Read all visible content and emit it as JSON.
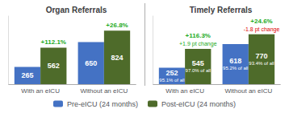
{
  "chart_data": [
    {
      "type": "bar",
      "title": "Organ Referrals",
      "categories": [
        "With an eICU",
        "Without an eICU"
      ],
      "series": [
        {
          "name": "Pre-eICU (24 months)",
          "color": "#4472C4",
          "values": [
            265,
            650
          ]
        },
        {
          "name": "Post-eICU (24 months)",
          "color": "#4E6B2A",
          "values": [
            562,
            824
          ]
        }
      ],
      "annotations": [
        {
          "category": "With an eICU",
          "text": "+112.1%",
          "color": "#22aa22"
        },
        {
          "category": "Without an eICU",
          "text": "+26.8%",
          "color": "#22aa22"
        }
      ],
      "ylim": [
        0,
        1050
      ],
      "grid": false,
      "tick_labels": "x",
      "data_labels": true,
      "legend": "bottom"
    },
    {
      "type": "bar",
      "title": "Timely Referrals",
      "categories": [
        "With an eICU",
        "Without an eICU"
      ],
      "series": [
        {
          "name": "Pre-eICU (24 months)",
          "color": "#4472C4",
          "values": [
            252,
            618
          ],
          "annotations": [
            "95.1% of all",
            "95.2% of all"
          ]
        },
        {
          "name": "Post-eICU (24 months)",
          "color": "#4E6B2A",
          "values": [
            545,
            770
          ],
          "annotations": [
            "97.0% of all",
            "93.4% of all"
          ]
        }
      ],
      "annotations": [
        {
          "category": "With an eICU",
          "text": "+116.3%",
          "color": "#22aa22"
        },
        {
          "category": "With an eICU",
          "text": "+1.9 pt change",
          "color": "#22aa22"
        },
        {
          "category": "Without an eICU",
          "text": "+24.6%",
          "color": "#22aa22"
        },
        {
          "category": "Without an eICU",
          "text": "-1.8 pt change",
          "color": "#dd0000"
        }
      ],
      "ylim": [
        0,
        1050
      ],
      "grid": false,
      "tick_labels": "x",
      "data_labels": true,
      "legend": "bottom"
    }
  ]
}
